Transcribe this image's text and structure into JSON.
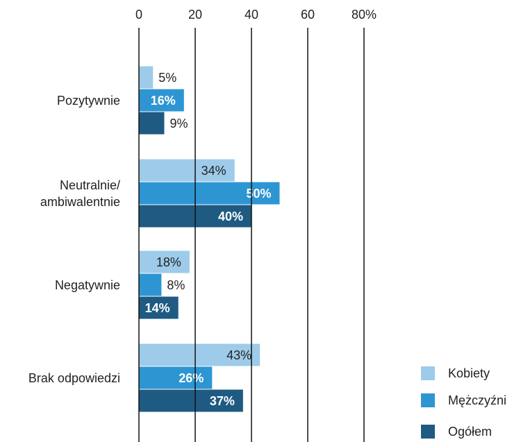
{
  "chart_data": {
    "type": "barh",
    "categories": [
      "Pozytywnie",
      "Neutralnie/\nambiwalentnie",
      "Negatywnie",
      "Brak odpowiedzi"
    ],
    "series": [
      {
        "name": "Kobiety",
        "color": "#9dcbe9",
        "values": [
          5,
          34,
          18,
          43
        ],
        "value_labels": [
          "5%",
          "34%",
          "18%",
          "43%"
        ]
      },
      {
        "name": "Mężczyźni",
        "color": "#2e95d3",
        "values": [
          16,
          50,
          8,
          26
        ],
        "value_labels": [
          "16%",
          "50%",
          "8%",
          "26%"
        ]
      },
      {
        "name": "Ogółem",
        "color": "#1f5a82",
        "values": [
          9,
          40,
          14,
          37
        ],
        "value_labels": [
          "9%",
          "40%",
          "14%",
          "37%"
        ]
      }
    ],
    "xlim": [
      0,
      80
    ],
    "xticks": [
      0,
      20,
      40,
      60,
      {
        "value": 80,
        "label": "80%"
      }
    ],
    "grid": true,
    "legend": "bottom-right"
  }
}
